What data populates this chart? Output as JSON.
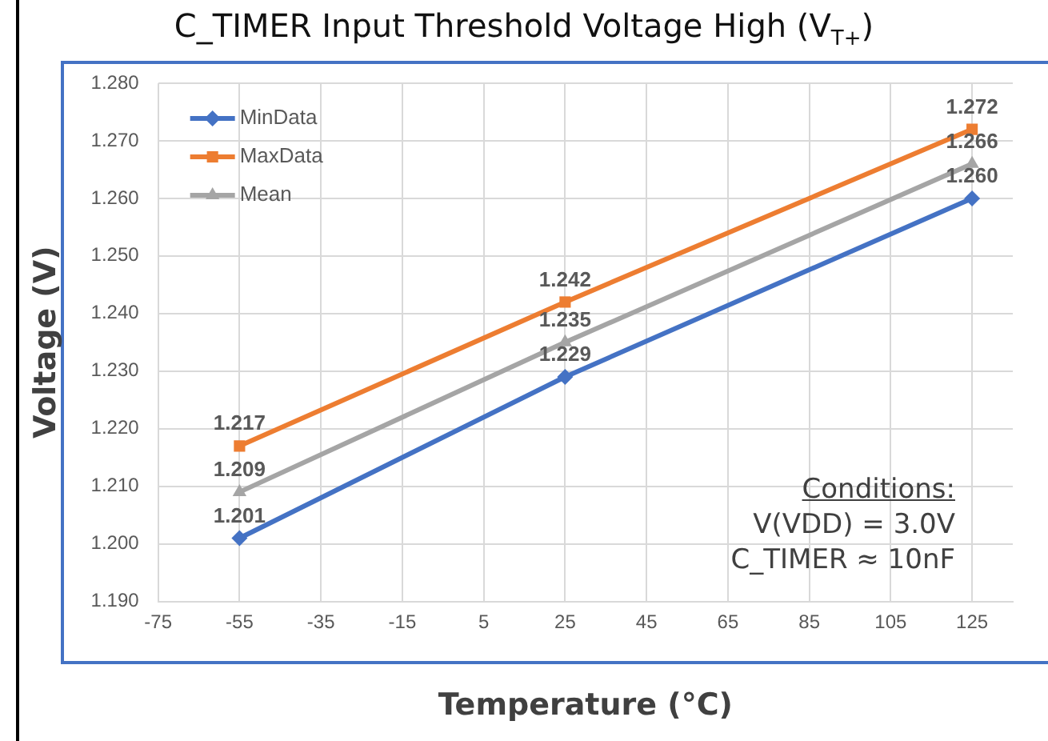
{
  "chart_data": {
    "type": "line",
    "title": "C_TIMER Input Threshold Voltage High (V$_{T+}$)",
    "xlabel": "Temperature (°C)",
    "ylabel": "Voltage (V)",
    "x": [
      -55,
      25,
      125
    ],
    "series": [
      {
        "name": "MinData",
        "color": "#4472c4",
        "marker": "diamond",
        "values": [
          1.201,
          1.229,
          1.26
        ],
        "value_labels": [
          "1.201",
          "1.229",
          "1.260"
        ]
      },
      {
        "name": "MaxData",
        "color": "#ed7d31",
        "marker": "square",
        "values": [
          1.217,
          1.242,
          1.272
        ],
        "value_labels": [
          "1.217",
          "1.242",
          "1.272"
        ]
      },
      {
        "name": "Mean",
        "color": "#a5a5a5",
        "marker": "triangle",
        "values": [
          1.209,
          1.235,
          1.266
        ],
        "value_labels": [
          "1.209",
          "1.235",
          "1.266"
        ]
      }
    ],
    "xlim": [
      -75,
      135
    ],
    "xticks": [
      -75,
      -55,
      -35,
      -15,
      5,
      25,
      45,
      65,
      85,
      105,
      125
    ],
    "ylim": [
      1.19,
      1.28
    ],
    "yticks": [
      {
        "value": 1.19,
        "label": "1.190"
      },
      {
        "value": 1.2,
        "label": "1.200"
      },
      {
        "value": 1.21,
        "label": "1.210"
      },
      {
        "value": 1.22,
        "label": "1.220"
      },
      {
        "value": 1.23,
        "label": "1.230"
      },
      {
        "value": 1.24,
        "label": "1.240"
      },
      {
        "value": 1.25,
        "label": "1.250"
      },
      {
        "value": 1.26,
        "label": "1.260"
      },
      {
        "value": 1.27,
        "label": "1.270"
      },
      {
        "value": 1.28,
        "label": "1.280"
      }
    ],
    "grid": true,
    "legend": "top left",
    "annotations": [
      "Conditions:",
      "V(VDD) = 3.0V",
      "C_TIMER ≈ 10nF"
    ]
  }
}
